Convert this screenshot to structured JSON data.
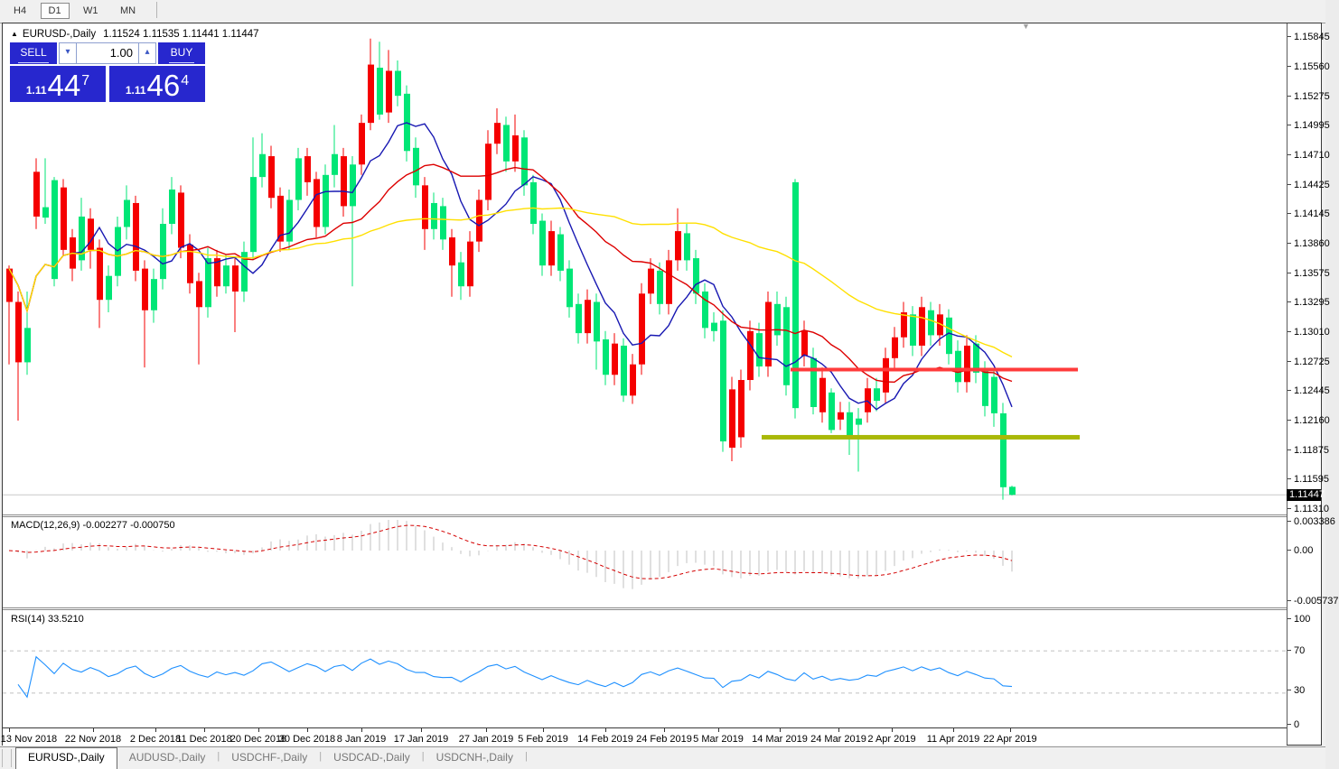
{
  "toolbar": {
    "buttons": [
      {
        "label": "H4",
        "active": false
      },
      {
        "label": "D1",
        "active": true
      },
      {
        "label": "W1",
        "active": false
      },
      {
        "label": "MN",
        "active": false
      }
    ]
  },
  "window_title": {
    "collapse_icon": "▲",
    "symbol": "EURUSD-,Daily",
    "ohlc": "1.11524 1.11535 1.11441 1.11447"
  },
  "trade_panel": {
    "sell_label": "SELL",
    "buy_label": "BUY",
    "volume": "1.00",
    "sell_price": {
      "prefix": "1.11",
      "big": "44",
      "sup": "7"
    },
    "buy_price": {
      "prefix": "1.11",
      "big": "46",
      "sup": "4"
    }
  },
  "chart_data": {
    "type": "candlestick",
    "symbol": "EURUSD-",
    "timeframe": "Daily",
    "current_price": "1.11447",
    "bid_line_color": "#c8c8c8",
    "candle_colors": {
      "up": "#f50000",
      "down": "#00e676"
    },
    "price_axis_ticks": [
      "1.15845",
      "1.15560",
      "1.15275",
      "1.14995",
      "1.14710",
      "1.14425",
      "1.14145",
      "1.13860",
      "1.13575",
      "1.13295",
      "1.13010",
      "1.12725",
      "1.12445",
      "1.12160",
      "1.11875",
      "1.11595",
      "1.11310"
    ],
    "date_ticks": [
      {
        "label": "13 Nov 2018",
        "i": 0
      },
      {
        "label": "22 Nov 2018",
        "i": 9.3
      },
      {
        "label": "2 Dec 2018",
        "i": 16.2
      },
      {
        "label": "11 Dec 2018",
        "i": 21.6
      },
      {
        "label": "20 Dec 2018",
        "i": 27.6
      },
      {
        "label": "30 Dec 2018",
        "i": 33
      },
      {
        "label": "8 Jan 2019",
        "i": 39
      },
      {
        "label": "17 Jan 2019",
        "i": 45.6
      },
      {
        "label": "27 Jan 2019",
        "i": 52.8
      },
      {
        "label": "5 Feb 2019",
        "i": 59.1
      },
      {
        "label": "14 Feb 2019",
        "i": 66
      },
      {
        "label": "24 Feb 2019",
        "i": 72.5
      },
      {
        "label": "5 Mar 2019",
        "i": 78.5
      },
      {
        "label": "14 Mar 2019",
        "i": 85.3
      },
      {
        "label": "24 Mar 2019",
        "i": 91.8
      },
      {
        "label": "2 Apr 2019",
        "i": 97.7
      },
      {
        "label": "11 Apr 2019",
        "i": 104.5
      },
      {
        "label": "22 Apr 2019",
        "i": 110.8
      }
    ],
    "moving_averages": [
      {
        "period": 8,
        "color": "#1818b2"
      },
      {
        "period": 20,
        "color": "#dd0000"
      },
      {
        "period": 50,
        "color": "#ffe000"
      }
    ],
    "lines": [
      {
        "name": "resistance",
        "price": 1.1265,
        "color": "#ff3b3b",
        "from_i": 86.5,
        "to_i": 118.3,
        "width": 4
      },
      {
        "name": "support",
        "price": 1.12,
        "color": "#a9b808",
        "from_i": 83.3,
        "to_i": 118.5,
        "width": 5
      }
    ],
    "candles": [
      [
        1.133,
        1.1365,
        1.127,
        1.1362
      ],
      [
        1.1272,
        1.134,
        1.1216,
        1.133
      ],
      [
        1.1305,
        1.134,
        1.126,
        1.1272
      ],
      [
        1.1412,
        1.1468,
        1.14,
        1.1455
      ],
      [
        1.1421,
        1.1468,
        1.1405,
        1.1411
      ],
      [
        1.1447,
        1.145,
        1.1345,
        1.1352
      ],
      [
        1.138,
        1.1448,
        1.1375,
        1.144
      ],
      [
        1.1362,
        1.14,
        1.135,
        1.1392
      ],
      [
        1.1412,
        1.143,
        1.136,
        1.137
      ],
      [
        1.138,
        1.142,
        1.1362,
        1.141
      ],
      [
        1.1332,
        1.139,
        1.1305,
        1.1382
      ],
      [
        1.1355,
        1.1365,
        1.132,
        1.1332
      ],
      [
        1.1402,
        1.1412,
        1.1345,
        1.1355
      ],
      [
        1.1428,
        1.1442,
        1.139,
        1.1402
      ],
      [
        1.136,
        1.1432,
        1.135,
        1.1425
      ],
      [
        1.1322,
        1.137,
        1.1267,
        1.1362
      ],
      [
        1.1352,
        1.1362,
        1.131,
        1.1322
      ],
      [
        1.1405,
        1.142,
        1.1342,
        1.1352
      ],
      [
        1.1438,
        1.145,
        1.1395,
        1.1405
      ],
      [
        1.1382,
        1.1442,
        1.1372,
        1.1435
      ],
      [
        1.1348,
        1.1395,
        1.1338,
        1.1385
      ],
      [
        1.1325,
        1.1358,
        1.127,
        1.135
      ],
      [
        1.1372,
        1.1382,
        1.1315,
        1.1325
      ],
      [
        1.1345,
        1.138,
        1.1335,
        1.1372
      ],
      [
        1.1365,
        1.1375,
        1.1338,
        1.1345
      ],
      [
        1.134,
        1.1372,
        1.1301,
        1.1365
      ],
      [
        1.1378,
        1.1388,
        1.133,
        1.134
      ],
      [
        1.145,
        1.1488,
        1.137,
        1.1378
      ],
      [
        1.1472,
        1.1492,
        1.144,
        1.145
      ],
      [
        1.143,
        1.148,
        1.142,
        1.147
      ],
      [
        1.1388,
        1.144,
        1.1378,
        1.1432
      ],
      [
        1.1428,
        1.1438,
        1.138,
        1.1388
      ],
      [
        1.1468,
        1.1478,
        1.1418,
        1.1428
      ],
      [
        1.1445,
        1.1478,
        1.1432,
        1.147
      ],
      [
        1.1402,
        1.1455,
        1.1392,
        1.1448
      ],
      [
        1.1452,
        1.1462,
        1.1395,
        1.1402
      ],
      [
        1.1472,
        1.15,
        1.144,
        1.1452
      ],
      [
        1.1422,
        1.1478,
        1.1412,
        1.147
      ],
      [
        1.1462,
        1.147,
        1.1345,
        1.1422
      ],
      [
        1.1462,
        1.151,
        1.1452,
        1.1502
      ],
      [
        1.1502,
        1.1583,
        1.1495,
        1.1558
      ],
      [
        1.1555,
        1.158,
        1.1505,
        1.151
      ],
      [
        1.1512,
        1.1572,
        1.1502,
        1.1552
      ],
      [
        1.1552,
        1.1562,
        1.1518,
        1.1528
      ],
      [
        1.153,
        1.1538,
        1.1465,
        1.1475
      ],
      [
        1.1478,
        1.1488,
        1.143,
        1.1442
      ],
      [
        1.14,
        1.145,
        1.138,
        1.1442
      ],
      [
        1.1425,
        1.1435,
        1.139,
        1.14
      ],
      [
        1.1422,
        1.143,
        1.138,
        1.139
      ],
      [
        1.1365,
        1.14,
        1.1335,
        1.1392
      ],
      [
        1.1368,
        1.1378,
        1.1332,
        1.1345
      ],
      [
        1.1345,
        1.1398,
        1.1335,
        1.1388
      ],
      [
        1.1388,
        1.1438,
        1.1378,
        1.1428
      ],
      [
        1.1428,
        1.1495,
        1.1418,
        1.1482
      ],
      [
        1.1482,
        1.1516,
        1.1472,
        1.1502
      ],
      [
        1.15,
        1.1508,
        1.1455,
        1.1465
      ],
      [
        1.1465,
        1.151,
        1.1455,
        1.149
      ],
      [
        1.1488,
        1.1495,
        1.1432,
        1.1442
      ],
      [
        1.1445,
        1.1452,
        1.1395,
        1.1405
      ],
      [
        1.1408,
        1.1415,
        1.1355,
        1.1365
      ],
      [
        1.1365,
        1.1408,
        1.1355,
        1.1398
      ],
      [
        1.1395,
        1.1402,
        1.135,
        1.136
      ],
      [
        1.1362,
        1.137,
        1.1315,
        1.1325
      ],
      [
        1.1328,
        1.1338,
        1.129,
        1.13
      ],
      [
        1.13,
        1.1342,
        1.129,
        1.1332
      ],
      [
        1.133,
        1.1338,
        1.1265,
        1.1292
      ],
      [
        1.1294,
        1.1302,
        1.125,
        1.126
      ],
      [
        1.126,
        1.13,
        1.125,
        1.129
      ],
      [
        1.1288,
        1.1295,
        1.1234,
        1.124
      ],
      [
        1.124,
        1.128,
        1.1232,
        1.127
      ],
      [
        1.127,
        1.1348,
        1.126,
        1.1338
      ],
      [
        1.1338,
        1.1372,
        1.1328,
        1.1362
      ],
      [
        1.136,
        1.1368,
        1.1318,
        1.1328
      ],
      [
        1.1328,
        1.138,
        1.1318,
        1.137
      ],
      [
        1.137,
        1.142,
        1.136,
        1.1398
      ],
      [
        1.1396,
        1.1405,
        1.136,
        1.137
      ],
      [
        1.1372,
        1.138,
        1.1328,
        1.1338
      ],
      [
        1.134,
        1.1348,
        1.1295,
        1.1305
      ],
      [
        1.131,
        1.132,
        1.1292,
        1.1302
      ],
      [
        1.1312,
        1.1322,
        1.1186,
        1.1196
      ],
      [
        1.119,
        1.1258,
        1.1177,
        1.1246
      ],
      [
        1.12,
        1.1265,
        1.119,
        1.1255
      ],
      [
        1.1255,
        1.1312,
        1.1245,
        1.1302
      ],
      [
        1.13,
        1.131,
        1.1258,
        1.1268
      ],
      [
        1.1268,
        1.134,
        1.1258,
        1.133
      ],
      [
        1.1328,
        1.134,
        1.1288,
        1.1298
      ],
      [
        1.1325,
        1.1335,
        1.124,
        1.125
      ],
      [
        1.1445,
        1.1448,
        1.1218,
        1.1228
      ],
      [
        1.1278,
        1.1312,
        1.1268,
        1.1302
      ],
      [
        1.1276,
        1.1286,
        1.1222,
        1.1229
      ],
      [
        1.1224,
        1.1267,
        1.1214,
        1.1257
      ],
      [
        1.1243,
        1.1247,
        1.1204,
        1.1207
      ],
      [
        1.1217,
        1.1234,
        1.1207,
        1.1224
      ],
      [
        1.1224,
        1.1234,
        1.1183,
        1.1202
      ],
      [
        1.1218,
        1.1228,
        1.1167,
        1.1212
      ],
      [
        1.1224,
        1.1257,
        1.1214,
        1.1247
      ],
      [
        1.1247,
        1.1257,
        1.1225,
        1.1235
      ],
      [
        1.1243,
        1.1286,
        1.1233,
        1.1276
      ],
      [
        1.1276,
        1.1306,
        1.1266,
        1.1296
      ],
      [
        1.1296,
        1.133,
        1.1286,
        1.132
      ],
      [
        1.1318,
        1.1326,
        1.1278,
        1.1288
      ],
      [
        1.1288,
        1.1335,
        1.1278,
        1.1325
      ],
      [
        1.1322,
        1.133,
        1.1288,
        1.1298
      ],
      [
        1.1298,
        1.1328,
        1.1288,
        1.1318
      ],
      [
        1.1315,
        1.1323,
        1.127,
        1.128
      ],
      [
        1.1283,
        1.1293,
        1.1243,
        1.1253
      ],
      [
        1.1253,
        1.1298,
        1.1243,
        1.1288
      ],
      [
        1.129,
        1.1298,
        1.1252,
        1.1262
      ],
      [
        1.1265,
        1.1273,
        1.122,
        1.123
      ],
      [
        1.1258,
        1.1266,
        1.121,
        1.1223
      ],
      [
        1.1223,
        1.1233,
        1.114,
        1.1152
      ],
      [
        1.11524,
        1.11535,
        1.11441,
        1.11447
      ]
    ],
    "macd": {
      "label": "MACD(12,26,9)",
      "values": "-0.002277 -0.000750",
      "params": [
        12,
        26,
        9
      ],
      "scale_labels": [
        "0.003386",
        "0.00",
        "-0.005737"
      ],
      "scale": {
        "max": 0.003386,
        "min": -0.005737
      },
      "histogram_color": "#c0c0c0",
      "signal_color": "#d40000"
    },
    "rsi": {
      "label": "RSI(14)",
      "value": "33.5210",
      "period": 14,
      "levels": [
        70,
        30
      ],
      "scale_labels": [
        "100",
        "70",
        "30",
        "0"
      ],
      "line_color": "#1e90ff"
    }
  },
  "tabs": {
    "separator": "|",
    "items": [
      {
        "label": "EURUSD-,Daily",
        "active": true
      },
      {
        "label": "AUDUSD-,Daily",
        "active": false
      },
      {
        "label": "USDCHF-,Daily",
        "active": false
      },
      {
        "label": "USDCAD-,Daily",
        "active": false
      },
      {
        "label": "USDCNH-,Daily",
        "active": false
      }
    ]
  },
  "misc": {
    "scroll_marker": "▼"
  }
}
